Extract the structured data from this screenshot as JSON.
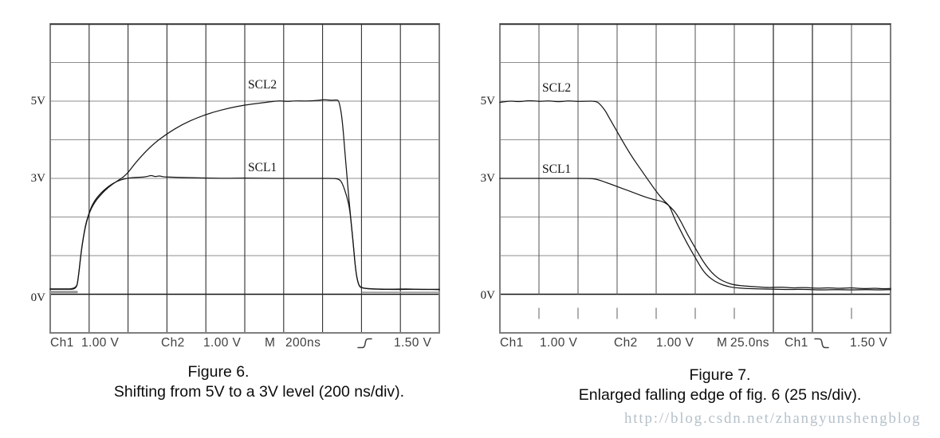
{
  "page": {
    "background": "#ffffff"
  },
  "watermark": {
    "text": "http://blog.csdn.net/zhangyunshengblog",
    "color": "#b5c1ca"
  },
  "trace_color": "#161616",
  "grid_colors": {
    "horizontal": "#8e8e8e",
    "vertical_dark": "#2e2e2e",
    "vertical_gray": "#606060",
    "zero_line": "#151515",
    "border": "#7e7e7e"
  },
  "chart_data": [
    {
      "id": "fig6",
      "type": "line",
      "title": "Figure 6.",
      "subtitle": "Shifting from 5V to a 3V level (200 ns/div).",
      "x_unit": "time (divisions, 200 ns/div)",
      "y_unit": "volts (1.00 V/div)",
      "volts_per_div": 1.0,
      "xlim": [
        0,
        10
      ],
      "grid": {
        "cols": 10,
        "rows": 8,
        "zero_row": 7,
        "verticals_end_at_zero": false,
        "full_height_columns": []
      },
      "y_axis_labels": [
        {
          "text": "5V",
          "volts": 5
        },
        {
          "text": "3V",
          "volts": 3
        },
        {
          "text": "0V",
          "volts": 0
        }
      ],
      "series": [
        {
          "name": "SCL2",
          "color": "#161616",
          "width": 1.25,
          "points": [
            [
              0,
              0.14
            ],
            [
              0.3,
              0.14
            ],
            [
              0.67,
              0.14
            ],
            [
              0.72,
              0.4
            ],
            [
              0.8,
              1.15
            ],
            [
              0.9,
              1.75
            ],
            [
              1.0,
              2.1
            ],
            [
              1.12,
              2.35
            ],
            [
              1.3,
              2.58
            ],
            [
              1.5,
              2.78
            ],
            [
              1.7,
              2.92
            ],
            [
              1.95,
              3.08
            ],
            [
              2.2,
              3.42
            ],
            [
              2.6,
              3.85
            ],
            [
              3.0,
              4.16
            ],
            [
              3.4,
              4.4
            ],
            [
              3.8,
              4.58
            ],
            [
              4.2,
              4.72
            ],
            [
              4.6,
              4.82
            ],
            [
              5.0,
              4.9
            ],
            [
              5.4,
              4.95
            ],
            [
              5.7,
              4.99
            ],
            [
              5.9,
              5.01
            ],
            [
              6.1,
              4.99
            ],
            [
              6.3,
              5.01
            ],
            [
              6.6,
              5.0
            ],
            [
              6.9,
              5.02
            ],
            [
              7.05,
              5.04
            ],
            [
              7.2,
              5.02
            ],
            [
              7.35,
              5.03
            ],
            [
              7.42,
              5.02
            ],
            [
              7.5,
              4.6
            ],
            [
              7.58,
              3.6
            ],
            [
              7.65,
              2.8
            ],
            [
              7.7,
              2.2
            ],
            [
              7.78,
              1.4
            ],
            [
              7.85,
              0.6
            ],
            [
              7.92,
              0.25
            ],
            [
              8.0,
              0.16
            ],
            [
              8.3,
              0.14
            ],
            [
              8.7,
              0.13
            ],
            [
              9.2,
              0.14
            ],
            [
              9.6,
              0.12
            ],
            [
              10,
              0.13
            ]
          ]
        },
        {
          "name": "SCL1",
          "color": "#161616",
          "width": 1.25,
          "points": [
            [
              0,
              0.13
            ],
            [
              0.4,
              0.13
            ],
            [
              0.67,
              0.13
            ],
            [
              0.72,
              0.4
            ],
            [
              0.8,
              1.15
            ],
            [
              0.9,
              1.78
            ],
            [
              1.0,
              2.12
            ],
            [
              1.12,
              2.4
            ],
            [
              1.3,
              2.62
            ],
            [
              1.5,
              2.8
            ],
            [
              1.7,
              2.92
            ],
            [
              1.9,
              2.99
            ],
            [
              2.1,
              3.02
            ],
            [
              2.35,
              3.03
            ],
            [
              2.5,
              3.05
            ],
            [
              2.6,
              3.08
            ],
            [
              2.7,
              3.04
            ],
            [
              2.8,
              3.07
            ],
            [
              2.9,
              3.04
            ],
            [
              3.1,
              3.03
            ],
            [
              3.5,
              3.02
            ],
            [
              4.0,
              3.01
            ],
            [
              4.5,
              3.0
            ],
            [
              5.0,
              3.01
            ],
            [
              5.5,
              3.0
            ],
            [
              6.0,
              3.0
            ],
            [
              6.5,
              3.0
            ],
            [
              7.0,
              3.0
            ],
            [
              7.3,
              3.0
            ],
            [
              7.42,
              2.98
            ],
            [
              7.5,
              2.9
            ],
            [
              7.62,
              2.55
            ],
            [
              7.7,
              2.2
            ],
            [
              7.78,
              1.4
            ],
            [
              7.85,
              0.6
            ],
            [
              7.92,
              0.24
            ],
            [
              8.0,
              0.15
            ],
            [
              8.4,
              0.13
            ],
            [
              8.9,
              0.12
            ],
            [
              9.4,
              0.13
            ],
            [
              10,
              0.12
            ]
          ]
        }
      ],
      "ghosts": [
        {
          "name": "channel-ghost-start",
          "color": "#9a9a9a",
          "width": 3,
          "points": [
            [
              0,
              0.06
            ],
            [
              0.68,
              0.06
            ]
          ]
        },
        {
          "name": "channel-ghost-end",
          "color": "#9a9a9a",
          "width": 1.6,
          "points": [
            [
              8.02,
              0.05
            ],
            [
              10,
              0.05
            ]
          ]
        }
      ],
      "status": {
        "ch1": "Ch1",
        "ch1_scale": "1.00 V",
        "ch2": "Ch2",
        "ch2_scale": "1.00 V",
        "m": "M",
        "timebase": "200ns",
        "trigger_slope": "rising",
        "trigger_level": "1.50 V"
      },
      "caption": {
        "line1": "Figure 6.",
        "line2": "Shifting from 5V to a 3V level (200 ns/div)."
      }
    },
    {
      "id": "fig7",
      "type": "line",
      "title": "Figure 7.",
      "subtitle": "Enlarged falling edge of fig. 6 (25 ns/div).",
      "x_unit": "time (divisions, 25 ns/div)",
      "y_unit": "volts (1.00 V/div)",
      "volts_per_div": 1.0,
      "xlim": [
        0,
        10
      ],
      "grid": {
        "cols": 10,
        "rows": 8,
        "zero_row": 7,
        "verticals_end_at_zero": true,
        "full_height_columns": [
          7,
          8
        ]
      },
      "y_axis_labels": [
        {
          "text": "5V",
          "volts": 5
        },
        {
          "text": "3V",
          "volts": 3
        },
        {
          "text": "0V",
          "volts": 0
        }
      ],
      "series": [
        {
          "name": "SCL2",
          "color": "#161616",
          "width": 1.25,
          "points": [
            [
              0,
              4.97
            ],
            [
              0.25,
              5.01
            ],
            [
              0.5,
              4.98
            ],
            [
              0.75,
              5.02
            ],
            [
              1.0,
              4.99
            ],
            [
              1.25,
              5.01
            ],
            [
              1.5,
              4.98
            ],
            [
              1.75,
              5.01
            ],
            [
              2.0,
              4.99
            ],
            [
              2.2,
              5.0
            ],
            [
              2.45,
              5.0
            ],
            [
              2.55,
              4.94
            ],
            [
              2.7,
              4.75
            ],
            [
              2.78,
              4.6
            ],
            [
              2.98,
              4.25
            ],
            [
              3.33,
              3.63
            ],
            [
              3.67,
              3.14
            ],
            [
              4.0,
              2.66
            ],
            [
              4.2,
              2.42
            ],
            [
              4.35,
              2.28
            ],
            [
              4.45,
              2.0
            ],
            [
              4.6,
              1.7
            ],
            [
              4.8,
              1.3
            ],
            [
              5.0,
              0.95
            ],
            [
              5.2,
              0.6
            ],
            [
              5.4,
              0.4
            ],
            [
              5.6,
              0.28
            ],
            [
              5.8,
              0.21
            ],
            [
              6.0,
              0.17
            ],
            [
              6.3,
              0.15
            ],
            [
              6.6,
              0.14
            ],
            [
              7.0,
              0.13
            ],
            [
              7.4,
              0.12
            ],
            [
              7.8,
              0.13
            ],
            [
              8.2,
              0.11
            ],
            [
              8.6,
              0.12
            ],
            [
              9.0,
              0.11
            ],
            [
              9.4,
              0.12
            ],
            [
              9.7,
              0.11
            ],
            [
              10,
              0.12
            ]
          ]
        },
        {
          "name": "SCL1",
          "color": "#161616",
          "width": 1.25,
          "points": [
            [
              0,
              3.0
            ],
            [
              0.6,
              3.0
            ],
            [
              1.2,
              3.0
            ],
            [
              1.8,
              3.0
            ],
            [
              2.2,
              3.0
            ],
            [
              2.45,
              2.99
            ],
            [
              2.7,
              2.9
            ],
            [
              3.0,
              2.79
            ],
            [
              3.3,
              2.68
            ],
            [
              3.6,
              2.56
            ],
            [
              3.9,
              2.46
            ],
            [
              4.1,
              2.42
            ],
            [
              4.25,
              2.36
            ],
            [
              4.45,
              2.18
            ],
            [
              4.6,
              1.95
            ],
            [
              4.8,
              1.55
            ],
            [
              5.0,
              1.2
            ],
            [
              5.2,
              0.85
            ],
            [
              5.4,
              0.58
            ],
            [
              5.6,
              0.4
            ],
            [
              5.8,
              0.3
            ],
            [
              6.0,
              0.24
            ],
            [
              6.3,
              0.21
            ],
            [
              6.6,
              0.19
            ],
            [
              6.9,
              0.17
            ],
            [
              7.2,
              0.19
            ],
            [
              7.5,
              0.16
            ],
            [
              7.8,
              0.18
            ],
            [
              8.1,
              0.15
            ],
            [
              8.4,
              0.17
            ],
            [
              8.7,
              0.15
            ],
            [
              9.0,
              0.17
            ],
            [
              9.3,
              0.14
            ],
            [
              9.6,
              0.16
            ],
            [
              9.8,
              0.14
            ],
            [
              10,
              0.15
            ]
          ]
        }
      ],
      "ghosts": [],
      "status": {
        "ch1": "Ch1",
        "ch1_scale": "1.00 V",
        "ch2": "Ch2",
        "ch2_scale": "1.00 V",
        "m": "M",
        "timebase": "25.0ns",
        "trigger_source": "Ch1",
        "trigger_slope": "falling",
        "trigger_level": "1.50 V"
      },
      "caption": {
        "line1": "Figure 7.",
        "line2": "Enlarged falling edge of fig. 6 (25 ns/div)."
      }
    }
  ]
}
